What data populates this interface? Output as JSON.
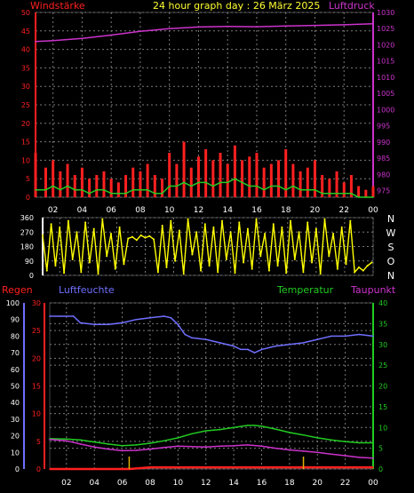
{
  "header": {
    "left_label": "Windstärke",
    "title": "24 hour graph day : 26 März 2025",
    "right_label": "Luftdruck"
  },
  "colors": {
    "wind": "#ff2020",
    "wind_avg": "#22cc22",
    "pressure": "#cc33cc",
    "direction": "#ffff00",
    "humidity": "#6f6fff",
    "rain": "#ff2020",
    "temperature": "#22cc22",
    "dewpoint": "#cc33cc",
    "grid": "#7a7a7a",
    "title": "#ffff33"
  },
  "x_ticks": [
    "02",
    "04",
    "06",
    "08",
    "10",
    "12",
    "14",
    "16",
    "18",
    "20",
    "22",
    "00"
  ],
  "chart_data": [
    {
      "type": "line",
      "name": "wind-pressure",
      "left_axis": {
        "label": "Windstärke",
        "ticks": [
          0,
          5,
          10,
          15,
          20,
          25,
          30,
          35,
          40,
          45,
          50
        ],
        "range": [
          0,
          50
        ]
      },
      "right_axis": {
        "label": "Luftdruck",
        "ticks": [
          975,
          980,
          985,
          990,
          995,
          1000,
          1005,
          1010,
          1015,
          1020,
          1025,
          1030
        ],
        "range": [
          973,
          1030
        ]
      },
      "x_range_hours": [
        0.8,
        24
      ],
      "series": [
        {
          "key": "wind_gust",
          "x": [
            0.8,
            1.5,
            2,
            2.5,
            3,
            3.5,
            4,
            4.5,
            5,
            5.5,
            6,
            6.5,
            7,
            7.5,
            8,
            8.5,
            9,
            9.5,
            10,
            10.5,
            11,
            11.5,
            12,
            12.5,
            13,
            13.5,
            14,
            14.5,
            15,
            15.5,
            16,
            16.5,
            17,
            17.5,
            18,
            18.5,
            19,
            19.5,
            20,
            20.5,
            21,
            21.5,
            22,
            22.5,
            23,
            23.5,
            24
          ],
          "y": [
            12,
            8,
            10,
            7,
            9,
            6,
            8,
            5,
            6,
            7,
            5,
            4,
            6,
            8,
            7,
            9,
            6,
            5,
            12,
            9,
            15,
            8,
            11,
            13,
            10,
            12,
            9,
            14,
            10,
            11,
            12,
            8,
            9,
            10,
            13,
            9,
            7,
            8,
            10,
            6,
            5,
            7,
            4,
            6,
            3,
            2,
            3
          ]
        },
        {
          "key": "wind_avg",
          "x": [
            0.8,
            1.5,
            2,
            2.5,
            3,
            3.5,
            4,
            4.5,
            5,
            5.5,
            6,
            6.5,
            7,
            7.5,
            8,
            8.5,
            9,
            9.5,
            10,
            10.5,
            11,
            11.5,
            12,
            12.5,
            13,
            13.5,
            14,
            14.5,
            15,
            15.5,
            16,
            16.5,
            17,
            17.5,
            18,
            18.5,
            19,
            19.5,
            20,
            20.5,
            21,
            21.5,
            22,
            22.5,
            23,
            23.5,
            24
          ],
          "y": [
            2,
            2,
            3,
            2,
            3,
            2,
            2,
            1,
            2,
            2,
            1,
            1,
            1,
            2,
            2,
            2,
            1,
            1,
            3,
            3,
            4,
            3,
            4,
            4,
            3,
            4,
            4,
            5,
            4,
            3,
            3,
            2,
            3,
            3,
            2,
            3,
            2,
            2,
            2,
            1,
            1,
            1,
            1,
            1,
            0,
            0,
            0
          ]
        },
        {
          "key": "pressure",
          "axis": "right",
          "x": [
            0.8,
            2,
            4,
            6,
            8,
            10,
            12,
            14,
            16,
            18,
            20,
            22,
            24
          ],
          "y": [
            1021,
            1021.3,
            1022,
            1023,
            1024.2,
            1025,
            1025.5,
            1025.7,
            1025.6,
            1025.8,
            1026,
            1026.2,
            1026.5
          ]
        }
      ]
    },
    {
      "type": "scatter",
      "name": "wind-direction",
      "left_axis": {
        "ticks": [
          0,
          90,
          180,
          270,
          360
        ],
        "range": [
          0,
          360
        ]
      },
      "right_axis": {
        "ticks": [
          "N",
          "W",
          "S",
          "O",
          "N"
        ]
      },
      "x_range_hours": [
        0.8,
        24
      ],
      "series": [
        {
          "key": "direction",
          "x": [
            0.8,
            1.1,
            1.4,
            1.7,
            2,
            2.3,
            2.6,
            2.9,
            3.2,
            3.5,
            3.8,
            4.1,
            4.4,
            4.7,
            5,
            5.3,
            5.6,
            5.9,
            6.2,
            6.5,
            6.8,
            7.1,
            7.4,
            7.7,
            8,
            8.3,
            8.6,
            8.9,
            9.2,
            9.5,
            9.8,
            10.1,
            10.4,
            10.7,
            11,
            11.3,
            11.6,
            11.9,
            12.2,
            12.5,
            12.8,
            13.1,
            13.4,
            13.7,
            14,
            14.3,
            14.6,
            14.9,
            15.2,
            15.5,
            15.8,
            16.1,
            16.4,
            16.7,
            17,
            17.3,
            17.6,
            17.9,
            18.2,
            18.5,
            18.8,
            19.1,
            19.4,
            19.7,
            20,
            20.3,
            20.6,
            20.9,
            21.2,
            21.5,
            21.8,
            22.1,
            22.4,
            22.7,
            23,
            23.3,
            23.6,
            23.9
          ],
          "y": [
            250,
            30,
            320,
            60,
            300,
            15,
            340,
            100,
            270,
            20,
            330,
            80,
            290,
            10,
            350,
            120,
            260,
            40,
            300,
            70,
            230,
            240,
            220,
            250,
            235,
            245,
            225,
            20,
            310,
            50,
            340,
            90,
            280,
            10,
            350,
            130,
            270,
            30,
            320,
            60,
            300,
            20,
            340,
            100,
            270,
            15,
            330,
            80,
            290,
            40,
            350,
            120,
            260,
            30,
            320,
            60,
            300,
            15,
            340,
            100,
            270,
            20,
            330,
            80,
            290,
            10,
            350,
            120,
            260,
            40,
            300,
            70,
            340,
            20,
            50,
            30,
            60,
            80
          ]
        }
      ]
    },
    {
      "type": "line",
      "name": "temperature-humidity",
      "legend": [
        "Regen",
        "Luftfeuchte",
        "Temperatur",
        "Taupunkt"
      ],
      "axes": {
        "humidity": {
          "ticks": [
            0,
            10,
            20,
            30,
            40,
            50,
            60,
            70,
            80,
            90,
            100
          ],
          "range": [
            0,
            100
          ]
        },
        "rain": {
          "ticks": [
            0,
            5,
            10,
            15,
            20,
            25,
            30
          ],
          "range": [
            0,
            30
          ]
        },
        "temperature": {
          "ticks": [
            0,
            5,
            10,
            15,
            20,
            25,
            30,
            35,
            40
          ],
          "range": [
            0,
            40
          ]
        }
      },
      "x_range_hours": [
        0.8,
        24
      ],
      "series": [
        {
          "key": "humidity",
          "axis": "humidity",
          "x": [
            0.8,
            1.5,
            2.5,
            3,
            4,
            5,
            6,
            7,
            8,
            9,
            9.5,
            10,
            10.5,
            11,
            12,
            13,
            14,
            14.5,
            15,
            15.5,
            16,
            17,
            18,
            19,
            20,
            21,
            22,
            23,
            24
          ],
          "y": [
            92,
            92,
            92,
            88,
            87,
            87,
            88,
            90,
            91,
            92,
            91,
            87,
            81,
            79,
            78,
            76,
            74,
            72,
            72,
            70,
            72,
            74,
            75,
            76,
            78,
            80,
            80,
            81,
            80
          ]
        },
        {
          "key": "temperature",
          "axis": "temperature",
          "x": [
            0.8,
            2,
            3,
            4,
            5,
            6,
            7,
            8,
            9,
            10,
            11,
            12,
            13,
            14,
            15,
            15.5,
            16,
            17,
            18,
            19,
            20,
            21,
            22,
            23,
            24
          ],
          "y": [
            7.3,
            7.2,
            7.0,
            6.5,
            6,
            5.6,
            5.8,
            6.2,
            6.8,
            7.5,
            8.5,
            9.2,
            9.5,
            10,
            10.5,
            10.5,
            10.3,
            9.6,
            8.8,
            8.2,
            7.5,
            7.0,
            6.6,
            6.3,
            6.3
          ]
        },
        {
          "key": "dewpoint",
          "axis": "temperature",
          "x": [
            0.8,
            2,
            3,
            4,
            5,
            6,
            7,
            8,
            9,
            10,
            11,
            12,
            13,
            14,
            15,
            16,
            17,
            18,
            19,
            20,
            21,
            22,
            23,
            24
          ],
          "y": [
            7.1,
            6.8,
            6.0,
            5.3,
            4.8,
            4.4,
            4.5,
            4.8,
            5.2,
            5.5,
            5.4,
            5.3,
            5.5,
            5.6,
            5.8,
            5.5,
            5.0,
            4.6,
            4.3,
            4.0,
            3.6,
            3.2,
            2.8,
            2.6
          ]
        },
        {
          "key": "rain",
          "axis": "rain",
          "x": [
            0.8,
            6.5,
            8,
            12,
            16,
            19,
            22,
            24
          ],
          "y": [
            0,
            0,
            0.3,
            0.3,
            0.3,
            0.3,
            0.3,
            0.3
          ]
        }
      ],
      "rain_markers_hours": [
        6.5,
        19
      ]
    }
  ]
}
